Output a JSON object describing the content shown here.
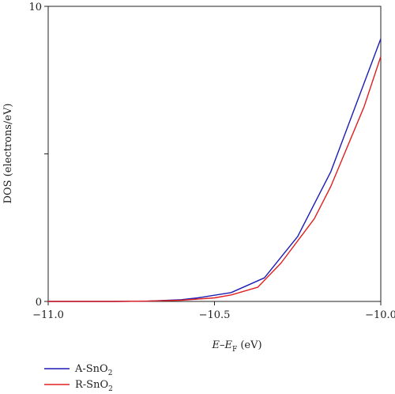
{
  "chart_data": {
    "type": "line",
    "xlabel_parts": {
      "e": "E",
      "dash": "–",
      "ef": "E",
      "ef_sub": "F",
      "unit": " (eV)"
    },
    "ylabel": "DOS (electrons/eV)",
    "xlim": [
      -11.0,
      -10.0
    ],
    "ylim": [
      0,
      10
    ],
    "x_ticks": [
      -11.0,
      -10.5,
      -10.0
    ],
    "x_tick_labels": [
      "−11.0",
      "−10.5",
      "−10.0"
    ],
    "y_ticks": [
      0,
      5,
      10
    ],
    "y_tick_labels": [
      "0",
      "",
      "10"
    ],
    "grid": false,
    "legend_position": "bottom-left",
    "series": [
      {
        "name_parts": {
          "base": "A-SnO",
          "sub": "2"
        },
        "color": "#1c1cb4",
        "x": [
          -11.0,
          -10.8,
          -10.7,
          -10.6,
          -10.55,
          -10.45,
          -10.35,
          -10.3,
          -10.25,
          -10.15,
          -10.05,
          -10.0
        ],
        "y": [
          0,
          0,
          0.01,
          0.06,
          0.12,
          0.3,
          0.8,
          1.5,
          2.2,
          4.4,
          7.4,
          8.9
        ]
      },
      {
        "name_parts": {
          "base": "R-SnO",
          "sub": "2"
        },
        "color": "#e02020",
        "x": [
          -11.0,
          -10.8,
          -10.7,
          -10.6,
          -10.5,
          -10.45,
          -10.37,
          -10.3,
          -10.2,
          -10.15,
          -10.05,
          -10.0
        ],
        "y": [
          0,
          0,
          0.01,
          0.04,
          0.12,
          0.22,
          0.48,
          1.3,
          2.8,
          3.9,
          6.6,
          8.3
        ]
      }
    ]
  }
}
